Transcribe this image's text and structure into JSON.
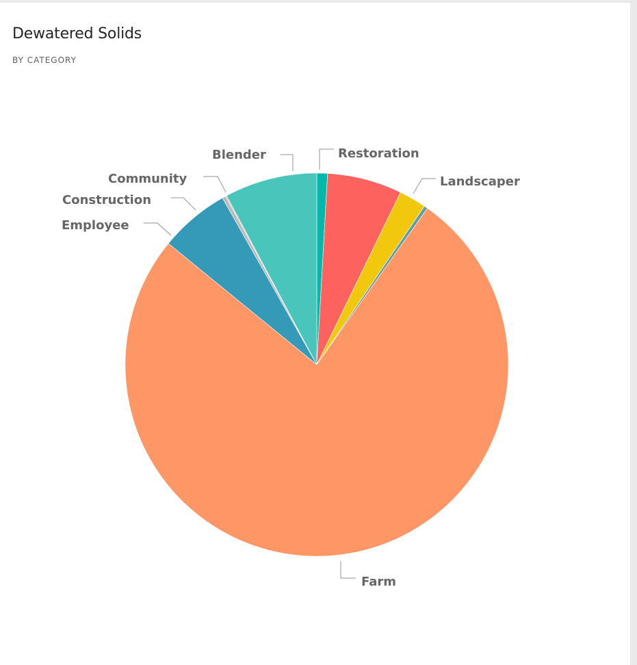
{
  "header": {
    "title": "Dewatered Solids",
    "subtitle": "BY CATEGORY"
  },
  "chart_data": {
    "type": "pie",
    "title": "Dewatered Solids",
    "subtitle": "BY CATEGORY",
    "start_angle_deg": 0,
    "direction": "clockwise",
    "slices": [
      {
        "label": "Restoration",
        "value": 0.9,
        "color": "#01B8AA"
      },
      {
        "label": "Restoration",
        "value": 6.3,
        "color": "#FD625E"
      },
      {
        "label": "Landscaper",
        "value": 2.3,
        "color": "#F2C80F"
      },
      {
        "label": "Landscaper",
        "value": 0.3,
        "color": "#5F9EA0"
      },
      {
        "label": "Farm",
        "value": 76.1,
        "color": "#FE9666"
      },
      {
        "label": "Employee",
        "value": 5.9,
        "color": "#3599B8"
      },
      {
        "label": "Construction",
        "value": 0.3,
        "color": "#BBBBBB"
      },
      {
        "label": "Community",
        "value": 0.1,
        "color": "#C8C8C8"
      },
      {
        "label": "Blender",
        "value": 7.8,
        "color": "#4AC5BB"
      }
    ]
  }
}
